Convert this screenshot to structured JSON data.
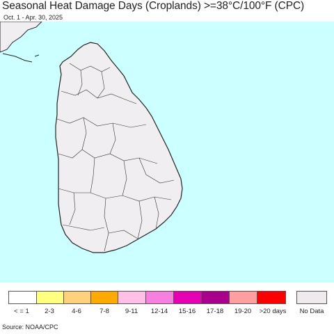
{
  "title": "Seasonal Heat Damage Days (Croplands) >=38°C/100°F (CPC)",
  "subtitle": "Oct. 1 - Apr. 30, 2025",
  "source": "Source: NOAA/CPC",
  "colors": {
    "ocean": "#ccffff",
    "land": "#f0eef0",
    "border": "#222222"
  },
  "legend": {
    "items": [
      {
        "label": "< = 1",
        "color": "#ffffff"
      },
      {
        "label": "2-3",
        "color": "#ffff80"
      },
      {
        "label": "4-6",
        "color": "#ffd17f"
      },
      {
        "label": "7-8",
        "color": "#ffaa00"
      },
      {
        "label": "9-11",
        "color": "#ffc0e8"
      },
      {
        "label": "12-14",
        "color": "#f77fe0"
      },
      {
        "label": "15-16",
        "color": "#e600b4"
      },
      {
        "label": "17-18",
        "color": "#a8008c"
      },
      {
        "label": "19-20",
        "color": "#ff9f9f"
      },
      {
        "label": ">20 days",
        "color": "#ff0000"
      }
    ],
    "no_data": {
      "label": "No Data",
      "color": "#eeeaee"
    }
  }
}
